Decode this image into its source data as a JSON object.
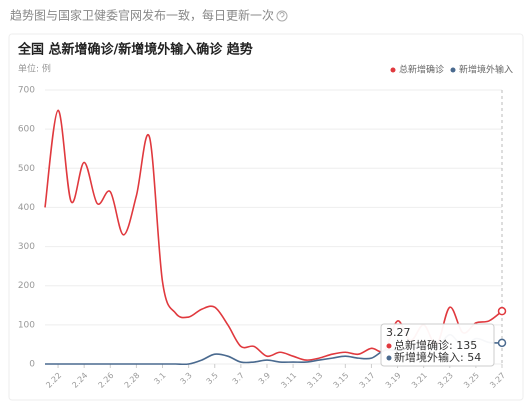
{
  "chart_data": {
    "type": "line",
    "note": "趋势图与国家卫健委官网发布一致，每日更新一次",
    "title": "全国 总新增确诊/新增境外输入确诊 趋势",
    "unit_label": "单位: 例",
    "categories": [
      null,
      "2.22",
      null,
      "2.24",
      null,
      "2.26",
      null,
      "2.28",
      null,
      "3.1",
      null,
      "3.3",
      null,
      "3.5",
      null,
      "3.7",
      null,
      "3.9",
      null,
      "3.11",
      null,
      "3.13",
      null,
      "3.15",
      null,
      "3.17",
      null,
      "3.19",
      null,
      "3.21",
      null,
      "3.23",
      null,
      "3.25",
      null,
      "3.27"
    ],
    "series": [
      {
        "name": "总新增确诊",
        "color": "#e0393e",
        "values": [
          400,
          648,
          415,
          515,
          410,
          440,
          330,
          430,
          580,
          210,
          130,
          120,
          140,
          145,
          100,
          45,
          45,
          20,
          30,
          20,
          10,
          15,
          25,
          30,
          25,
          40,
          35,
          110,
          60,
          100,
          50,
          145,
          80,
          105,
          110,
          135
        ]
      },
      {
        "name": "新增境外输入",
        "color": "#4a6a8f",
        "values": [
          0,
          0,
          0,
          0,
          0,
          0,
          0,
          0,
          0,
          0,
          0,
          0,
          10,
          25,
          20,
          5,
          5,
          10,
          5,
          5,
          5,
          10,
          15,
          20,
          15,
          15,
          35,
          35,
          40,
          45,
          40,
          75,
          45,
          65,
          55,
          54
        ]
      }
    ],
    "ylim": [
      0,
      700
    ],
    "yticks": [
      0,
      100,
      200,
      300,
      400,
      500,
      600,
      700
    ],
    "grid": true,
    "legend": "top-right",
    "tooltip": {
      "rows": [
        "总新增确诊: 135",
        "新增境外输入: 54"
      ]
    }
  }
}
